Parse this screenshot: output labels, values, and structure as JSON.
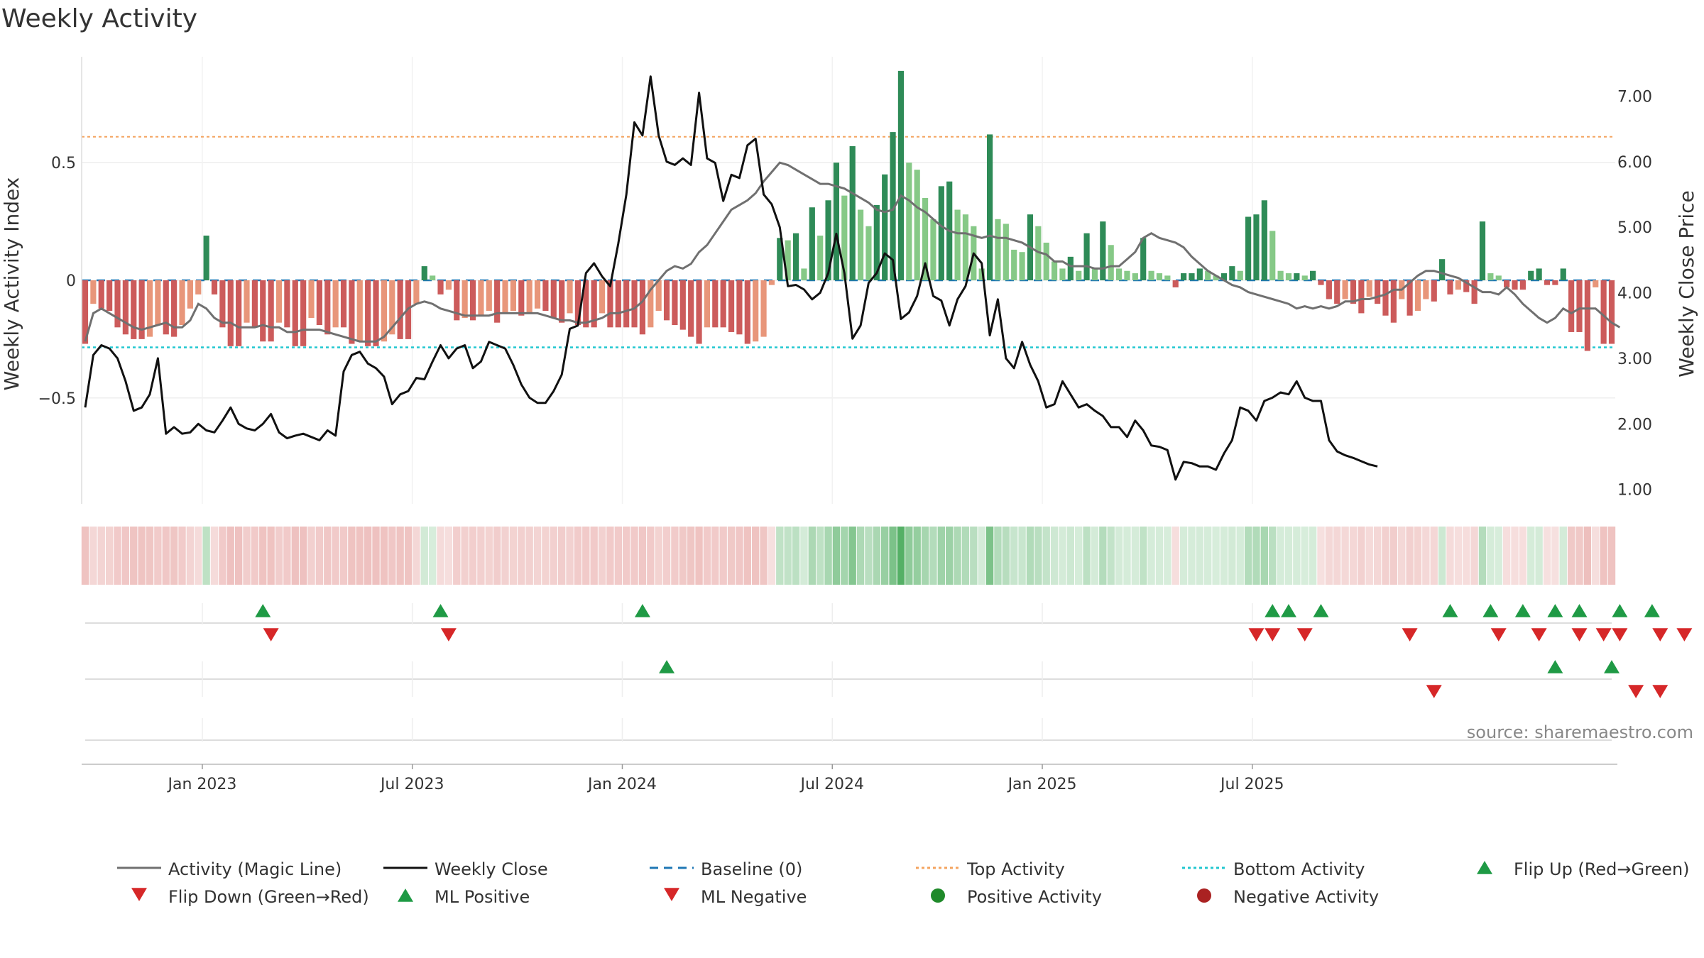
{
  "chart_data": {
    "type": "bar",
    "title": "Weekly Activity",
    "ylabel_left": "Weekly Activity Index",
    "ylabel_right": "Weekly Close Price",
    "source": "source: sharemaestro.com",
    "x_ticks": [
      "Jan 2023",
      "Jul 2023",
      "Jan 2024",
      "Jul 2024",
      "Jan 2025",
      "Jul 2025"
    ],
    "x_tick_weeks": [
      14.5,
      40.5,
      66.5,
      92.5,
      118.5,
      144.5
    ],
    "y_left_ticks": [
      {
        "value": 0.5,
        "label": "0.5"
      },
      {
        "value": 0,
        "label": "0"
      },
      {
        "value": -0.5,
        "label": "−0.5"
      }
    ],
    "y_left_range": [
      -0.95,
      0.95
    ],
    "y_right_ticks": [
      {
        "value": 7,
        "label": "7.00"
      },
      {
        "value": 6,
        "label": "6.00"
      },
      {
        "value": 5,
        "label": "5.00"
      },
      {
        "value": 4,
        "label": "4.00"
      },
      {
        "value": 3,
        "label": "3.00"
      },
      {
        "value": 2,
        "label": "2.00"
      },
      {
        "value": 1,
        "label": "1.00"
      }
    ],
    "y_right_range": [
      0.78,
      7.6
    ],
    "top_activity": 0.61,
    "bottom_activity": -0.285,
    "activity": [
      -0.27,
      -0.1,
      -0.12,
      -0.13,
      -0.2,
      -0.23,
      -0.25,
      -0.25,
      -0.24,
      -0.19,
      -0.23,
      -0.24,
      -0.19,
      -0.12,
      -0.06,
      0.19,
      -0.06,
      -0.2,
      -0.28,
      -0.28,
      -0.18,
      -0.2,
      -0.26,
      -0.26,
      -0.18,
      -0.2,
      -0.28,
      -0.28,
      -0.16,
      -0.19,
      -0.23,
      -0.2,
      -0.2,
      -0.27,
      -0.26,
      -0.28,
      -0.28,
      -0.26,
      -0.23,
      -0.25,
      -0.25,
      -0.1,
      0.06,
      0.02,
      -0.06,
      -0.04,
      -0.17,
      -0.16,
      -0.17,
      -0.15,
      -0.13,
      -0.18,
      -0.14,
      -0.13,
      -0.15,
      -0.14,
      -0.12,
      -0.13,
      -0.16,
      -0.18,
      -0.14,
      -0.19,
      -0.2,
      -0.2,
      -0.14,
      -0.2,
      -0.2,
      -0.2,
      -0.2,
      -0.23,
      -0.2,
      -0.13,
      -0.17,
      -0.19,
      -0.21,
      -0.24,
      -0.27,
      -0.2,
      -0.2,
      -0.2,
      -0.22,
      -0.23,
      -0.27,
      -0.26,
      -0.24,
      -0.02,
      0.18,
      0.17,
      0.2,
      0.05,
      0.31,
      0.19,
      0.34,
      0.5,
      0.36,
      0.57,
      0.3,
      0.23,
      0.32,
      0.45,
      0.63,
      0.89,
      0.5,
      0.47,
      0.35,
      0.26,
      0.4,
      0.42,
      0.3,
      0.28,
      0.23,
      0.05,
      0.62,
      0.26,
      0.24,
      0.13,
      0.12,
      0.28,
      0.23,
      0.16,
      0.08,
      0.05,
      0.1,
      0.04,
      0.2,
      0.05,
      0.25,
      0.15,
      0.05,
      0.04,
      0.03,
      0.18,
      0.04,
      0.03,
      0.02,
      -0.03,
      0.03,
      0.03,
      0.05,
      0.04,
      0.02,
      0.03,
      0.06,
      0.04,
      0.27,
      0.28,
      0.34,
      0.21,
      0.04,
      0.03,
      0.03,
      0.02,
      0.04,
      -0.02,
      -0.08,
      -0.1,
      -0.08,
      -0.1,
      -0.14,
      -0.07,
      -0.1,
      -0.15,
      -0.18,
      -0.08,
      -0.15,
      -0.13,
      -0.08,
      -0.09,
      0.09,
      -0.06,
      -0.04,
      -0.05,
      -0.1,
      0.25,
      0.03,
      0.02,
      -0.03,
      -0.04,
      -0.04,
      0.04,
      0.05,
      -0.02,
      -0.02,
      0.05,
      -0.22,
      -0.22,
      -0.3,
      -0.03,
      -0.27,
      -0.27
    ],
    "magic_line": [
      -0.26,
      -0.14,
      -0.12,
      -0.14,
      -0.16,
      -0.18,
      -0.2,
      -0.21,
      -0.2,
      -0.19,
      -0.18,
      -0.2,
      -0.2,
      -0.17,
      -0.1,
      -0.12,
      -0.16,
      -0.18,
      -0.18,
      -0.2,
      -0.2,
      -0.2,
      -0.19,
      -0.2,
      -0.2,
      -0.22,
      -0.22,
      -0.21,
      -0.21,
      -0.21,
      -0.22,
      -0.23,
      -0.24,
      -0.25,
      -0.26,
      -0.26,
      -0.26,
      -0.24,
      -0.2,
      -0.16,
      -0.12,
      -0.1,
      -0.09,
      -0.1,
      -0.12,
      -0.13,
      -0.14,
      -0.15,
      -0.15,
      -0.15,
      -0.15,
      -0.14,
      -0.14,
      -0.14,
      -0.14,
      -0.14,
      -0.14,
      -0.15,
      -0.16,
      -0.17,
      -0.17,
      -0.18,
      -0.18,
      -0.17,
      -0.16,
      -0.14,
      -0.14,
      -0.13,
      -0.12,
      -0.09,
      -0.04,
      0.0,
      0.04,
      0.06,
      0.05,
      0.07,
      0.12,
      0.15,
      0.2,
      0.25,
      0.3,
      0.32,
      0.34,
      0.37,
      0.42,
      0.46,
      0.5,
      0.49,
      0.47,
      0.45,
      0.43,
      0.41,
      0.41,
      0.4,
      0.39,
      0.37,
      0.35,
      0.33,
      0.3,
      0.29,
      0.3,
      0.36,
      0.34,
      0.31,
      0.29,
      0.26,
      0.23,
      0.21,
      0.2,
      0.2,
      0.19,
      0.18,
      0.19,
      0.18,
      0.18,
      0.17,
      0.16,
      0.14,
      0.12,
      0.11,
      0.08,
      0.08,
      0.06,
      0.06,
      0.06,
      0.05,
      0.05,
      0.06,
      0.06,
      0.09,
      0.12,
      0.18,
      0.2,
      0.18,
      0.17,
      0.16,
      0.14,
      0.1,
      0.07,
      0.04,
      0.02,
      0.0,
      -0.02,
      -0.03,
      -0.05,
      -0.06,
      -0.07,
      -0.08,
      -0.09,
      -0.1,
      -0.12,
      -0.11,
      -0.12,
      -0.11,
      -0.12,
      -0.11,
      -0.09,
      -0.09,
      -0.08,
      -0.08,
      -0.07,
      -0.06,
      -0.04,
      -0.04,
      -0.01,
      0.02,
      0.04,
      0.04,
      0.03,
      0.02,
      0.01,
      -0.01,
      -0.03,
      -0.05,
      -0.05,
      -0.06,
      -0.03,
      -0.06,
      -0.1,
      -0.13,
      -0.16,
      -0.18,
      -0.16,
      -0.12,
      -0.14,
      -0.12,
      -0.12,
      -0.12,
      -0.15,
      -0.18,
      -0.2
    ],
    "weekly_close": [
      2.25,
      3.05,
      3.2,
      3.15,
      3.0,
      2.65,
      2.2,
      2.25,
      2.45,
      3.0,
      1.85,
      1.95,
      1.85,
      1.87,
      2.0,
      1.9,
      1.87,
      2.05,
      2.25,
      2.0,
      1.93,
      1.9,
      2.0,
      2.15,
      1.87,
      1.78,
      1.82,
      1.85,
      1.8,
      1.75,
      1.9,
      1.82,
      2.8,
      3.05,
      3.1,
      2.92,
      2.85,
      2.72,
      2.3,
      2.45,
      2.5,
      2.7,
      2.68,
      2.95,
      3.2,
      3.0,
      3.15,
      3.2,
      2.85,
      2.95,
      3.25,
      3.2,
      3.15,
      2.9,
      2.6,
      2.4,
      2.32,
      2.32,
      2.5,
      2.75,
      3.45,
      3.5,
      4.3,
      4.45,
      4.25,
      4.1,
      4.75,
      5.5,
      6.6,
      6.4,
      7.3,
      6.4,
      6.0,
      5.95,
      6.05,
      5.95,
      7.05,
      6.05,
      5.98,
      5.4,
      5.8,
      5.75,
      6.25,
      6.35,
      5.5,
      5.35,
      5.0,
      4.1,
      4.12,
      4.05,
      3.9,
      4.0,
      4.3,
      4.9,
      4.3,
      3.3,
      3.5,
      4.15,
      4.3,
      4.6,
      4.5,
      3.6,
      3.7,
      3.95,
      4.45,
      3.95,
      3.88,
      3.5,
      3.9,
      4.1,
      4.6,
      4.45,
      3.35,
      3.9,
      3.0,
      2.85,
      3.25,
      2.9,
      2.65,
      2.25,
      2.3,
      2.65,
      2.45,
      2.25,
      2.3,
      2.2,
      2.12,
      1.95,
      1.95,
      1.8,
      2.05,
      1.9,
      1.67,
      1.65,
      1.6,
      1.15,
      1.42,
      1.4,
      1.35,
      1.35,
      1.3,
      1.55,
      1.75,
      2.25,
      2.2,
      2.05,
      2.35,
      2.4,
      2.48,
      2.45,
      2.65,
      2.4,
      2.35,
      2.35,
      1.75,
      1.58,
      1.52,
      1.48,
      1.43,
      1.38,
      1.35
    ],
    "heat_colors": {
      "neg_strong": "#cc5b5b",
      "neg_weak": "#e8967a",
      "pos_strong": "#2e8b57",
      "pos_weak": "#86c987",
      "band_pos": "#4aab5c",
      "band_neg": "#d8706c"
    },
    "rows": {
      "activity_flips": {
        "up": [
          22,
          44,
          69,
          147,
          149,
          153,
          169,
          174,
          178,
          182,
          185,
          190,
          194
        ],
        "down": [
          23,
          45,
          145,
          147,
          151,
          164,
          175,
          180,
          185,
          188,
          190,
          195,
          198
        ]
      },
      "ml_flips": {
        "up": [
          72,
          182,
          189
        ],
        "down": [
          167,
          192,
          195
        ]
      }
    },
    "legend": [
      {
        "label": "Activity (Magic Line)",
        "kind": "line",
        "color": "#707070",
        "dash": ""
      },
      {
        "label": "Weekly Close",
        "kind": "line",
        "color": "#111111",
        "dash": ""
      },
      {
        "label": "Baseline (0)",
        "kind": "line",
        "color": "#1f77b4",
        "dash": "12,8"
      },
      {
        "label": "Top Activity",
        "kind": "line",
        "color": "#f4a460",
        "dash": "4,4"
      },
      {
        "label": "Bottom Activity",
        "kind": "line",
        "color": "#22c7d0",
        "dash": "4,4"
      },
      {
        "label": "Flip Up (Red→Green)",
        "kind": "tri-up",
        "color": "#1f9a45",
        "dash": ""
      },
      {
        "label": "Flip Down (Green→Red)",
        "kind": "tri-down",
        "color": "#d62728",
        "dash": ""
      },
      {
        "label": "ML Positive",
        "kind": "tri-up",
        "color": "#1f9a45",
        "dash": ""
      },
      {
        "label": "ML Negative",
        "kind": "tri-down",
        "color": "#d62728",
        "dash": ""
      },
      {
        "label": "Positive Activity",
        "kind": "dot",
        "color": "#1f8a2a",
        "dash": ""
      },
      {
        "label": "Negative Activity",
        "kind": "dot",
        "color": "#aa2222",
        "dash": ""
      }
    ]
  }
}
